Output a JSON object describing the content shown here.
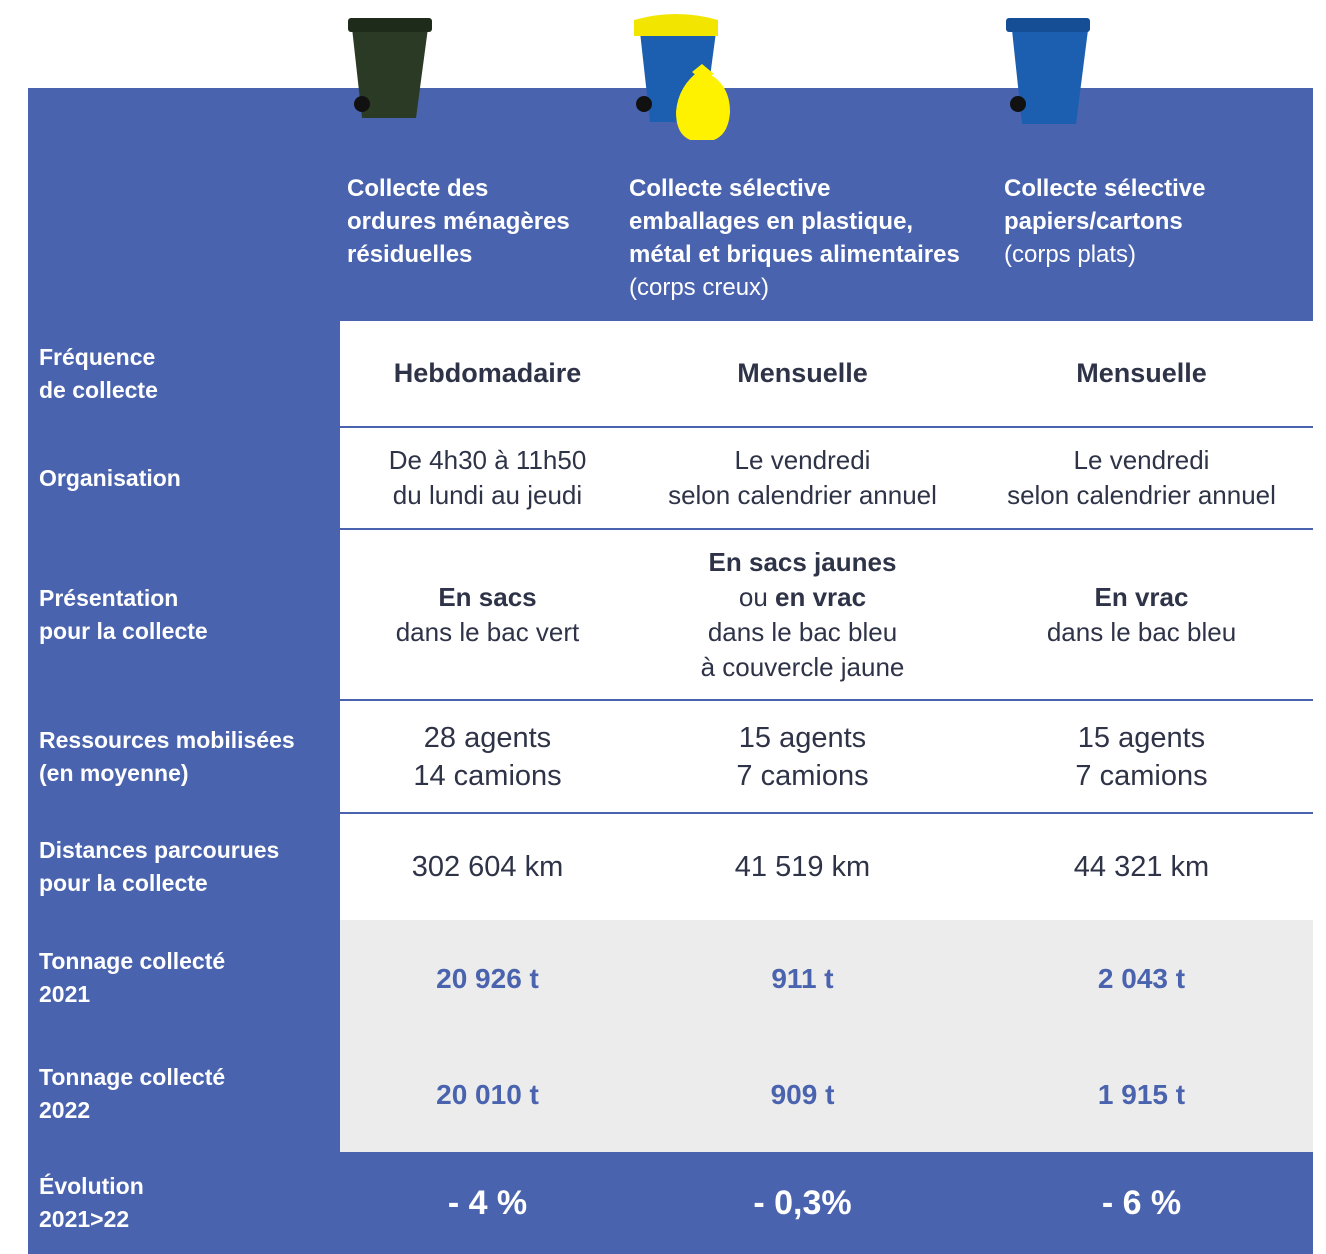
{
  "header": {
    "columns": [
      {
        "lines": [
          [
            {
              "text": "Collecte des",
              "bold": true
            }
          ],
          [
            {
              "text": "ordures ménagères",
              "bold": true
            }
          ],
          [
            {
              "text": "résiduelles",
              "bold": true
            }
          ]
        ]
      },
      {
        "lines": [
          [
            {
              "text": "Collecte sélective",
              "bold": true
            }
          ],
          [
            {
              "text": "emballages en plastique,",
              "bold": true
            }
          ],
          [
            {
              "text": "métal et briques alimentaires",
              "bold": true
            }
          ],
          [
            {
              "text": "(corps creux)",
              "bold": false
            }
          ]
        ]
      },
      {
        "lines": [
          [
            {
              "text": "Collecte sélective",
              "bold": true
            }
          ],
          [
            {
              "text": "papiers/cartons",
              "bold": true
            }
          ],
          [
            {
              "text": "(corps plats)",
              "bold": false
            }
          ]
        ]
      }
    ]
  },
  "rows": [
    {
      "label": [
        "Fréquence",
        "de collecte"
      ],
      "cells": [
        [
          [
            {
              "text": "Hebdomadaire",
              "bold": true
            }
          ]
        ],
        [
          [
            {
              "text": "Mensuelle",
              "bold": true
            }
          ]
        ],
        [
          [
            {
              "text": "Mensuelle",
              "bold": true
            }
          ]
        ]
      ]
    },
    {
      "label": [
        "Organisation"
      ],
      "cells": [
        [
          [
            {
              "text": "De 4h30 à 11h50",
              "bold": false
            }
          ],
          [
            {
              "text": "du lundi au jeudi",
              "bold": false
            }
          ]
        ],
        [
          [
            {
              "text": "Le vendredi",
              "bold": false
            }
          ],
          [
            {
              "text": "selon calendrier annuel",
              "bold": false
            }
          ]
        ],
        [
          [
            {
              "text": "Le vendredi",
              "bold": false
            }
          ],
          [
            {
              "text": "selon calendrier annuel",
              "bold": false
            }
          ]
        ]
      ]
    },
    {
      "label": [
        "Présentation",
        "pour la collecte"
      ],
      "cells": [
        [
          [
            {
              "text": "En sacs",
              "bold": true
            }
          ],
          [
            {
              "text": "dans le bac vert",
              "bold": false
            }
          ]
        ],
        [
          [
            {
              "text": "En sacs jaunes",
              "bold": true
            }
          ],
          [
            {
              "text": "ou ",
              "bold": false
            },
            {
              "text": "en vrac",
              "bold": true
            }
          ],
          [
            {
              "text": "dans le bac bleu",
              "bold": false
            }
          ],
          [
            {
              "text": "à couvercle jaune",
              "bold": false
            }
          ]
        ],
        [
          [
            {
              "text": "En vrac",
              "bold": true
            }
          ],
          [
            {
              "text": "dans le bac bleu",
              "bold": false
            }
          ]
        ]
      ]
    },
    {
      "label": [
        "Ressources mobilisées",
        "(en moyenne)"
      ],
      "cells": [
        [
          [
            {
              "text": "28 agents",
              "bold": false
            }
          ],
          [
            {
              "text": "14 camions",
              "bold": false
            }
          ]
        ],
        [
          [
            {
              "text": "15 agents",
              "bold": false
            }
          ],
          [
            {
              "text": "7 camions",
              "bold": false
            }
          ]
        ],
        [
          [
            {
              "text": "15 agents",
              "bold": false
            }
          ],
          [
            {
              "text": "7 camions",
              "bold": false
            }
          ]
        ]
      ]
    },
    {
      "label": [
        "Distances parcourues",
        "pour la collecte"
      ],
      "cells": [
        [
          [
            {
              "text": "302 604 km",
              "bold": false
            }
          ]
        ],
        [
          [
            {
              "text": "41 519 km",
              "bold": false
            }
          ]
        ],
        [
          [
            {
              "text": "44 321 km",
              "bold": false
            }
          ]
        ]
      ]
    },
    {
      "label": [
        "Tonnage collecté",
        "2021"
      ],
      "cells": [
        [
          [
            {
              "text": "20 926 t",
              "bold": true
            }
          ]
        ],
        [
          [
            {
              "text": "911 t",
              "bold": true
            }
          ]
        ],
        [
          [
            {
              "text": "2 043 t",
              "bold": true
            }
          ]
        ]
      ]
    },
    {
      "label": [
        "Tonnage collecté",
        "2022"
      ],
      "cells": [
        [
          [
            {
              "text": "20 010 t",
              "bold": true
            }
          ]
        ],
        [
          [
            {
              "text": "909 t",
              "bold": true
            }
          ]
        ],
        [
          [
            {
              "text": "1 915 t",
              "bold": true
            }
          ]
        ]
      ]
    },
    {
      "label": [
        "Évolution",
        "2021>22"
      ],
      "cells": [
        [
          [
            {
              "text": "- 4 %",
              "bold": true
            }
          ]
        ],
        [
          [
            {
              "text": "- 0,3%",
              "bold": true
            }
          ]
        ],
        [
          [
            {
              "text": "- 6 %",
              "bold": true
            }
          ]
        ]
      ]
    }
  ]
}
